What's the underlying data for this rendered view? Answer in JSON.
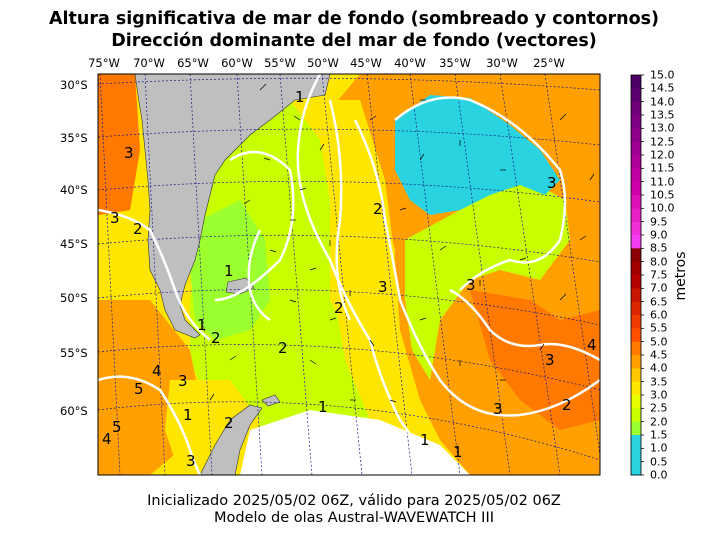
{
  "title": {
    "line1": "Altura significativa de mar de fondo (sombreado y contornos)",
    "line2": "Dirección dominante del mar de fondo (vectores)"
  },
  "map": {
    "lon_labels": [
      "75°W",
      "70°W",
      "65°W",
      "60°W",
      "55°W",
      "50°W",
      "45°W",
      "40°W",
      "35°W",
      "30°W",
      "25°W"
    ],
    "lat_labels": [
      "30°S",
      "35°S",
      "40°S",
      "45°S",
      "50°S",
      "55°S",
      "60°S"
    ],
    "contour_labels": [
      "1",
      "1",
      "1",
      "1",
      "1",
      "1",
      "1",
      "2",
      "2",
      "2",
      "2",
      "2",
      "2",
      "2",
      "3",
      "3",
      "3",
      "3",
      "3",
      "3",
      "3",
      "3",
      "3",
      "4",
      "4",
      "4",
      "5",
      "5"
    ],
    "colors": {
      "land": "#bfbfbf",
      "ocean_low": "#2ad3e0",
      "contour": "#ffffff",
      "grid": "#1a1a8c"
    }
  },
  "colorbar": {
    "label": "metros",
    "ticks": [
      "15.0",
      "14.5",
      "14.0",
      "13.5",
      "13.0",
      "12.5",
      "12.0",
      "11.5",
      "11.0",
      "10.5",
      "10.0",
      "9.5",
      "9.0",
      "8.5",
      "8.0",
      "7.5",
      "7.0",
      "6.5",
      "6.0",
      "5.5",
      "5.0",
      "4.5",
      "4.0",
      "3.5",
      "3.0",
      "2.5",
      "2.0",
      "1.5",
      "1.0",
      "0.5",
      "0.0"
    ],
    "colors": [
      "#4b0066",
      "#5c0070",
      "#6f007a",
      "#7f0082",
      "#8f008a",
      "#9f0092",
      "#b0009a",
      "#c000a2",
      "#cf00aa",
      "#dd10b5",
      "#e820c5",
      "#f030d8",
      "#f23cf0",
      "#8b0000",
      "#a00000",
      "#b40000",
      "#c81400",
      "#dc2800",
      "#f03c00",
      "#ff5000",
      "#ff7800",
      "#ffa000",
      "#ffc800",
      "#ffe600",
      "#e6ff00",
      "#c8ff00",
      "#9cff2e",
      "#2ad3e0",
      "#2ad3e0",
      "#2ad3e0"
    ]
  },
  "footer": {
    "line1": "Inicializado 2025/05/02 06Z, válido para 2025/05/02 06Z",
    "line2": "Modelo de olas Austral-WAVEWATCH III"
  }
}
